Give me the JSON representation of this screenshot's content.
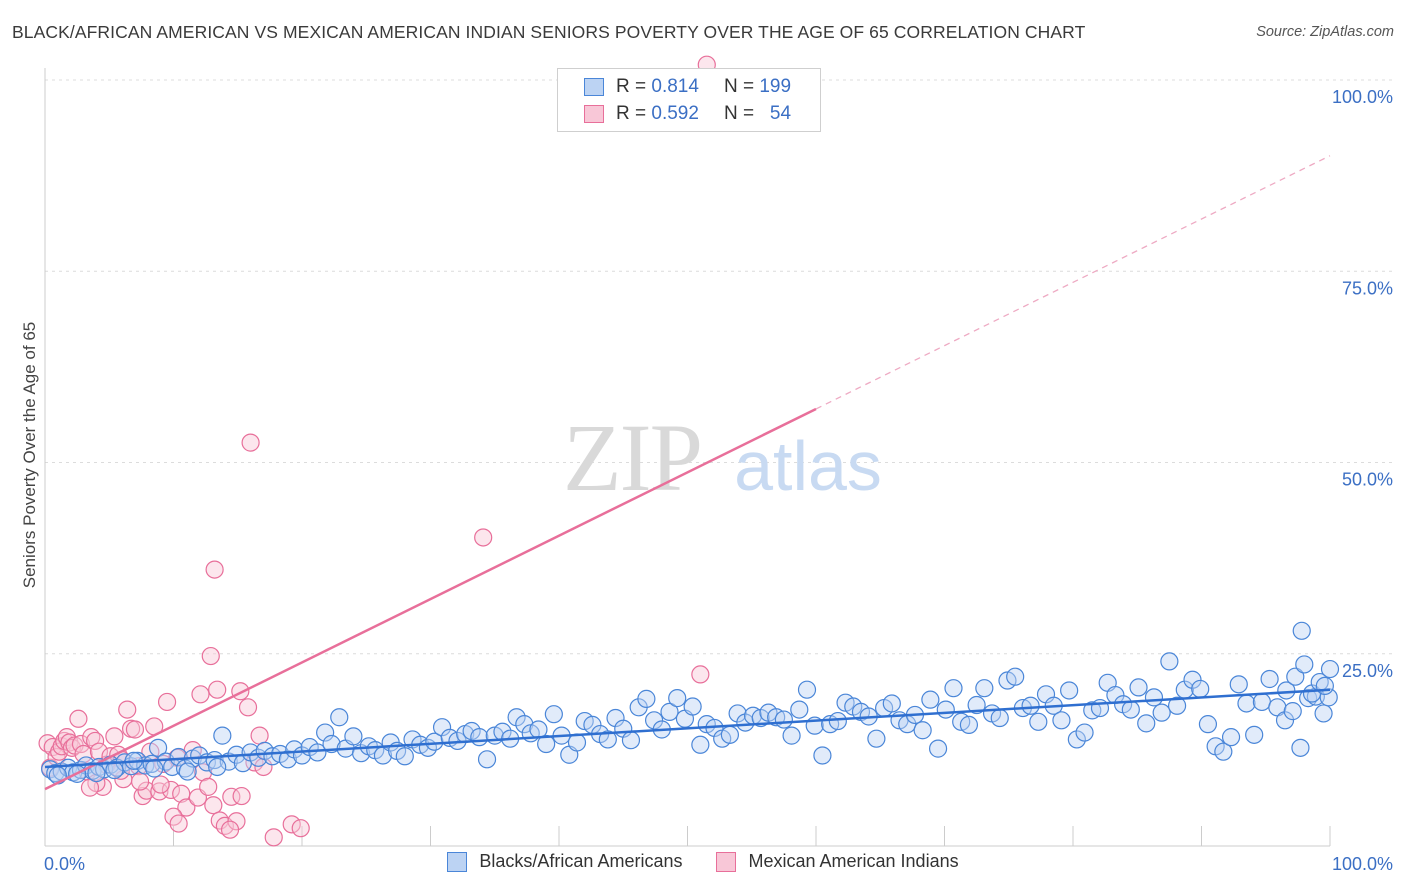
{
  "title": "BLACK/AFRICAN AMERICAN VS MEXICAN AMERICAN INDIAN SENIORS POVERTY OVER THE AGE OF 65 CORRELATION CHART",
  "source": "Source: ZipAtlas.com",
  "legend": {
    "row1": {
      "r_label": "R =",
      "r_value": "0.814",
      "n_label": "N =",
      "n_value": "199"
    },
    "row2": {
      "r_label": "R =",
      "r_value": "0.592",
      "n_label": "N =",
      "n_value": "54"
    }
  },
  "watermark": {
    "zip": "ZIP",
    "atlas": "atlas"
  },
  "chart_data": {
    "type": "scatter",
    "ylabel": "Seniors Poverty Over the Age of 65",
    "xlim": [
      0,
      100
    ],
    "ylim": [
      0,
      100
    ],
    "x_tick_labels": [
      "0.0%",
      "100.0%"
    ],
    "y_tick_labels": [
      "25.0%",
      "50.0%",
      "75.0%",
      "100.0%"
    ],
    "y_ticks": [
      25,
      50,
      75,
      100
    ],
    "grid": "horizontal dashed",
    "legend_position": "top-center",
    "colors": {
      "blue": "#4a86d8",
      "blue_fill": "#bcd3f3",
      "pink": "#e86f9a",
      "pink_fill": "#f8c7d7"
    },
    "series": [
      {
        "name": "Blacks/African Americans",
        "color": "#4a86d8",
        "trend": {
          "x": [
            0,
            100
          ],
          "y": [
            10.2,
            20.3
          ]
        },
        "points": [
          [
            0.4,
            9.9
          ],
          [
            0.8,
            9.4
          ],
          [
            1.3,
            9.6
          ],
          [
            1.8,
            10.1
          ],
          [
            2.2,
            9.5
          ],
          [
            2.8,
            9.8
          ],
          [
            3.2,
            10.4
          ],
          [
            3.7,
            9.7
          ],
          [
            4.2,
            10.2
          ],
          [
            4.6,
            9.9
          ],
          [
            5.1,
            10.5
          ],
          [
            5.6,
            10.1
          ],
          [
            6.2,
            10.8
          ],
          [
            6.7,
            10.3
          ],
          [
            7.2,
            11.0
          ],
          [
            7.8,
            10.4
          ],
          [
            8.3,
            10.6
          ],
          [
            8.8,
            12.7
          ],
          [
            9.4,
            10.9
          ],
          [
            9.9,
            10.2
          ],
          [
            10.4,
            11.5
          ],
          [
            10.9,
            10.0
          ],
          [
            11.5,
            11.3
          ],
          [
            12.0,
            11.7
          ],
          [
            12.6,
            10.8
          ],
          [
            13.2,
            11.1
          ],
          [
            13.8,
            14.3
          ],
          [
            14.3,
            10.9
          ],
          [
            14.9,
            11.8
          ],
          [
            15.4,
            10.7
          ],
          [
            16.0,
            12.1
          ],
          [
            16.6,
            11.4
          ],
          [
            17.1,
            12.3
          ],
          [
            17.7,
            11.6
          ],
          [
            18.3,
            11.9
          ],
          [
            18.9,
            11.2
          ],
          [
            19.4,
            12.5
          ],
          [
            20.0,
            11.7
          ],
          [
            20.6,
            12.8
          ],
          [
            21.2,
            12.1
          ],
          [
            21.8,
            14.7
          ],
          [
            22.3,
            13.2
          ],
          [
            22.9,
            16.7
          ],
          [
            23.4,
            12.6
          ],
          [
            24.0,
            14.2
          ],
          [
            24.6,
            12.0
          ],
          [
            25.2,
            12.9
          ],
          [
            25.7,
            12.4
          ],
          [
            26.3,
            11.7
          ],
          [
            26.9,
            13.4
          ],
          [
            27.4,
            12.3
          ],
          [
            28.0,
            11.6
          ],
          [
            28.6,
            13.8
          ],
          [
            29.2,
            13.1
          ],
          [
            29.8,
            12.7
          ],
          [
            30.3,
            13.5
          ],
          [
            30.9,
            15.4
          ],
          [
            31.5,
            14.0
          ],
          [
            32.1,
            13.6
          ],
          [
            32.7,
            14.5
          ],
          [
            33.2,
            14.9
          ],
          [
            33.8,
            14.1
          ],
          [
            34.4,
            11.2
          ],
          [
            35.0,
            14.3
          ],
          [
            35.6,
            14.8
          ],
          [
            36.2,
            13.9
          ],
          [
            36.7,
            16.7
          ],
          [
            37.3,
            15.8
          ],
          [
            37.8,
            14.6
          ],
          [
            38.4,
            15.1
          ],
          [
            39.0,
            13.2
          ],
          [
            39.6,
            17.1
          ],
          [
            40.2,
            14.3
          ],
          [
            40.8,
            11.8
          ],
          [
            41.4,
            13.4
          ],
          [
            42.0,
            16.2
          ],
          [
            42.6,
            15.7
          ],
          [
            43.2,
            14.5
          ],
          [
            43.8,
            13.8
          ],
          [
            44.4,
            16.6
          ],
          [
            45.0,
            15.2
          ],
          [
            45.6,
            13.7
          ],
          [
            46.2,
            18.0
          ],
          [
            46.8,
            19.1
          ],
          [
            47.4,
            16.3
          ],
          [
            48.0,
            15.1
          ],
          [
            48.6,
            17.4
          ],
          [
            49.2,
            19.2
          ],
          [
            49.8,
            16.5
          ],
          [
            50.4,
            18.1
          ],
          [
            51.0,
            13.1
          ],
          [
            51.5,
            15.8
          ],
          [
            52.1,
            15.3
          ],
          [
            52.7,
            13.9
          ],
          [
            53.3,
            14.4
          ],
          [
            53.9,
            17.2
          ],
          [
            54.5,
            16.0
          ],
          [
            55.1,
            16.9
          ],
          [
            55.7,
            16.6
          ],
          [
            56.3,
            17.3
          ],
          [
            56.9,
            16.7
          ],
          [
            57.5,
            16.4
          ],
          [
            58.1,
            14.3
          ],
          [
            58.7,
            17.7
          ],
          [
            59.3,
            20.3
          ],
          [
            59.9,
            15.6
          ],
          [
            60.5,
            11.7
          ],
          [
            61.1,
            15.8
          ],
          [
            61.7,
            16.2
          ],
          [
            62.3,
            18.6
          ],
          [
            62.9,
            18.1
          ],
          [
            63.5,
            17.4
          ],
          [
            64.1,
            16.8
          ],
          [
            64.7,
            13.9
          ],
          [
            65.3,
            17.9
          ],
          [
            65.9,
            18.5
          ],
          [
            66.5,
            16.3
          ],
          [
            67.1,
            15.8
          ],
          [
            67.7,
            17.0
          ],
          [
            68.3,
            15.0
          ],
          [
            68.9,
            19.0
          ],
          [
            69.5,
            12.6
          ],
          [
            70.1,
            17.7
          ],
          [
            70.7,
            20.5
          ],
          [
            71.3,
            16.1
          ],
          [
            71.9,
            15.7
          ],
          [
            72.5,
            18.3
          ],
          [
            73.1,
            20.5
          ],
          [
            73.7,
            17.2
          ],
          [
            74.3,
            16.6
          ],
          [
            74.9,
            21.5
          ],
          [
            75.5,
            22.0
          ],
          [
            76.1,
            17.9
          ],
          [
            76.7,
            18.2
          ],
          [
            77.3,
            16.1
          ],
          [
            77.9,
            19.7
          ],
          [
            78.5,
            18.2
          ],
          [
            79.1,
            16.3
          ],
          [
            79.7,
            20.2
          ],
          [
            80.3,
            13.8
          ],
          [
            80.9,
            14.7
          ],
          [
            81.5,
            17.6
          ],
          [
            82.1,
            17.9
          ],
          [
            82.7,
            21.2
          ],
          [
            83.3,
            19.6
          ],
          [
            83.9,
            18.4
          ],
          [
            84.5,
            17.7
          ],
          [
            85.1,
            20.6
          ],
          [
            85.7,
            15.9
          ],
          [
            86.3,
            19.3
          ],
          [
            86.9,
            17.3
          ],
          [
            87.5,
            24.0
          ],
          [
            88.1,
            18.2
          ],
          [
            88.7,
            20.3
          ],
          [
            89.3,
            21.6
          ],
          [
            89.9,
            20.4
          ],
          [
            90.5,
            15.8
          ],
          [
            91.1,
            12.9
          ],
          [
            91.7,
            12.2
          ],
          [
            92.3,
            14.1
          ],
          [
            92.9,
            21.0
          ],
          [
            93.5,
            18.5
          ],
          [
            94.1,
            14.4
          ],
          [
            94.7,
            18.7
          ],
          [
            95.3,
            21.7
          ],
          [
            95.9,
            18.0
          ],
          [
            96.5,
            16.3
          ],
          [
            97.1,
            17.5
          ],
          [
            97.7,
            12.7
          ],
          [
            98.3,
            19.2
          ],
          [
            98.9,
            19.4
          ],
          [
            99.5,
            17.2
          ],
          [
            99.9,
            19.3
          ],
          [
            96.6,
            20.2
          ],
          [
            97.3,
            22.0
          ],
          [
            98.0,
            23.6
          ],
          [
            98.6,
            19.8
          ],
          [
            99.2,
            21.3
          ],
          [
            99.6,
            20.8
          ],
          [
            100.0,
            23.0
          ],
          [
            97.8,
            28.0
          ],
          [
            1.0,
            9.1
          ],
          [
            2.5,
            9.3
          ],
          [
            4.0,
            9.4
          ],
          [
            5.4,
            9.8
          ],
          [
            6.9,
            11.0
          ],
          [
            8.5,
            10.0
          ],
          [
            11.1,
            9.6
          ],
          [
            13.4,
            10.2
          ]
        ]
      },
      {
        "name": "Mexican American Indians",
        "color": "#e86f9a",
        "trend": {
          "x": [
            0,
            60
          ],
          "y": [
            7.3,
            57.0
          ]
        },
        "trend_dashed": {
          "x": [
            60,
            100
          ],
          "y": [
            57.0,
            90.1
          ]
        },
        "points": [
          [
            0.2,
            13.3
          ],
          [
            0.4,
            10.1
          ],
          [
            0.6,
            12.8
          ],
          [
            0.9,
            11.5
          ],
          [
            1.1,
            12.2
          ],
          [
            1.3,
            12.9
          ],
          [
            1.5,
            13.6
          ],
          [
            1.7,
            14.1
          ],
          [
            1.9,
            13.4
          ],
          [
            2.1,
            12.7
          ],
          [
            2.3,
            13.0
          ],
          [
            2.6,
            16.5
          ],
          [
            2.8,
            13.2
          ],
          [
            3.0,
            11.9
          ],
          [
            3.3,
            9.6
          ],
          [
            3.6,
            14.1
          ],
          [
            3.9,
            13.6
          ],
          [
            4.2,
            12.2
          ],
          [
            4.5,
            7.6
          ],
          [
            4.8,
            10.5
          ],
          [
            5.1,
            11.6
          ],
          [
            5.4,
            14.2
          ],
          [
            5.7,
            11.8
          ],
          [
            6.0,
            11.1
          ],
          [
            6.4,
            17.7
          ],
          [
            6.7,
            15.2
          ],
          [
            7.0,
            15.1
          ],
          [
            7.3,
            10.3
          ],
          [
            7.6,
            6.4
          ],
          [
            7.9,
            7.1
          ],
          [
            8.2,
            12.2
          ],
          [
            8.5,
            15.5
          ],
          [
            8.9,
            7.0
          ],
          [
            9.2,
            10.6
          ],
          [
            9.5,
            18.7
          ],
          [
            9.8,
            7.2
          ],
          [
            10.3,
            11.4
          ],
          [
            10.6,
            6.7
          ],
          [
            11.0,
            4.9
          ],
          [
            11.5,
            12.4
          ],
          [
            11.9,
            6.2
          ],
          [
            12.3,
            9.5
          ],
          [
            12.7,
            7.6
          ],
          [
            13.1,
            5.2
          ],
          [
            13.6,
            3.2
          ],
          [
            14.0,
            2.5
          ],
          [
            14.5,
            6.3
          ],
          [
            14.9,
            3.1
          ],
          [
            15.3,
            6.4
          ],
          [
            15.8,
            18.0
          ],
          [
            16.3,
            10.8
          ],
          [
            16.7,
            14.3
          ],
          [
            17.0,
            10.2
          ],
          [
            19.2,
            2.7
          ],
          [
            10.0,
            3.7
          ],
          [
            12.1,
            19.7
          ],
          [
            13.4,
            20.3
          ],
          [
            12.9,
            24.7
          ],
          [
            9.0,
            7.9
          ],
          [
            10.4,
            2.8
          ],
          [
            14.4,
            2.0
          ],
          [
            17.8,
            1.0
          ],
          [
            19.9,
            2.2
          ],
          [
            15.2,
            20.1
          ],
          [
            16.0,
            52.6
          ],
          [
            13.2,
            36.0
          ],
          [
            34.1,
            40.2
          ],
          [
            51.0,
            22.3
          ],
          [
            51.5,
            102.0
          ],
          [
            6.1,
            8.6
          ],
          [
            7.4,
            8.3
          ],
          [
            5.9,
            9.7
          ],
          [
            4.0,
            8.1
          ],
          [
            3.5,
            7.5
          ]
        ]
      }
    ]
  }
}
